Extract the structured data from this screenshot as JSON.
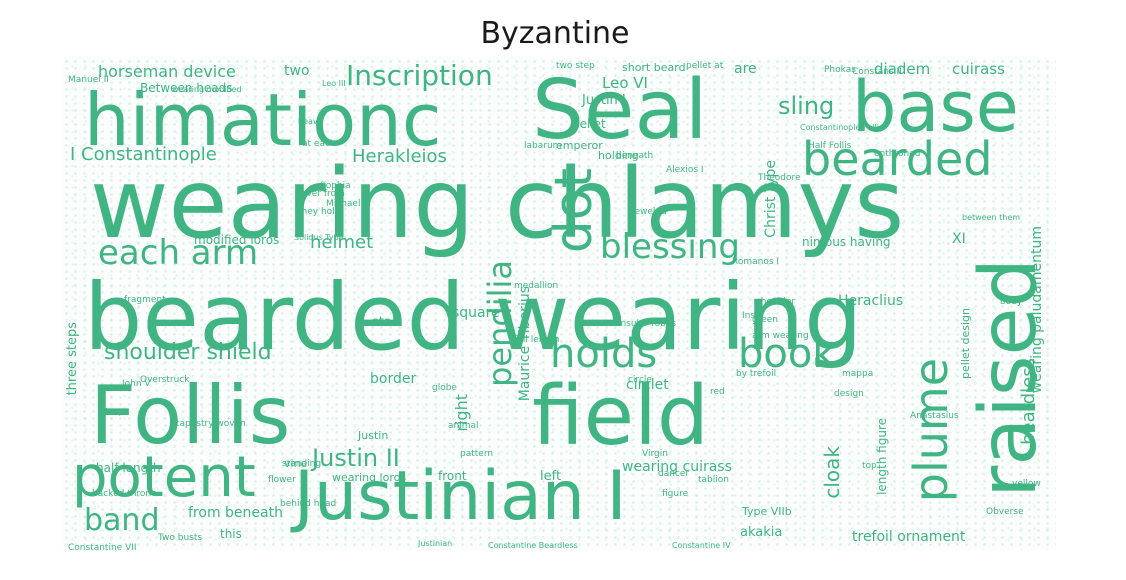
{
  "title": "Byzantine",
  "word_color": "#40b583",
  "words": [
    {
      "text": "wearing chlamys",
      "weight": 1.0
    },
    {
      "text": "bearded wearing",
      "weight": 0.97
    },
    {
      "text": "himationc",
      "weight": 0.82
    },
    {
      "text": "Seal",
      "weight": 0.88
    },
    {
      "text": "base",
      "weight": 0.82
    },
    {
      "text": "Follis",
      "weight": 0.9
    },
    {
      "text": "field",
      "weight": 0.9
    },
    {
      "text": "Justinian I",
      "weight": 0.7
    },
    {
      "text": "raised",
      "weight": 0.82
    },
    {
      "text": "potent",
      "weight": 0.6
    },
    {
      "text": "bearded",
      "weight": 0.5
    },
    {
      "text": "dot",
      "weight": 0.55
    },
    {
      "text": "plume",
      "weight": 0.48
    },
    {
      "text": "holds",
      "weight": 0.46
    },
    {
      "text": "book",
      "weight": 0.46
    },
    {
      "text": "blessing",
      "weight": 0.4
    },
    {
      "text": "each arm",
      "weight": 0.4
    },
    {
      "text": "pendilia",
      "weight": 0.38
    },
    {
      "text": "Inscription",
      "weight": 0.36
    },
    {
      "text": "band",
      "weight": 0.36
    },
    {
      "text": "Justin II",
      "weight": 0.3
    },
    {
      "text": "shoulder shield",
      "weight": 0.3
    },
    {
      "text": "sling",
      "weight": 0.3
    },
    {
      "text": "cloak",
      "weight": 0.26
    },
    {
      "text": "beardless",
      "weight": 0.26
    },
    {
      "text": "I Constantinople",
      "weight": 0.22
    },
    {
      "text": "Herakleios",
      "weight": 0.22
    },
    {
      "text": "horseman device",
      "weight": 0.2
    },
    {
      "text": "helmet",
      "weight": 0.22
    },
    {
      "text": "Maurice Tiberius",
      "weight": 0.2
    },
    {
      "text": "wearing cuirass",
      "weight": 0.18
    },
    {
      "text": "right",
      "weight": 0.2
    },
    {
      "text": "Leo VI",
      "weight": 0.18
    },
    {
      "text": "diadem",
      "weight": 0.17
    },
    {
      "text": "cuirass",
      "weight": 0.17
    },
    {
      "text": "Christ Type",
      "weight": 0.17
    },
    {
      "text": "nimbus having",
      "weight": 0.14
    },
    {
      "text": "wearing paludamentum",
      "weight": 0.14
    },
    {
      "text": "Heraclius",
      "weight": 0.16
    },
    {
      "text": "XI",
      "weight": 0.16
    },
    {
      "text": "trefoil ornament",
      "weight": 0.16
    },
    {
      "text": "from beneath",
      "weight": 0.16
    },
    {
      "text": "akakia",
      "weight": 0.15
    },
    {
      "text": "circlet",
      "weight": 0.15
    },
    {
      "text": "border",
      "weight": 0.15
    },
    {
      "text": "square",
      "weight": 0.15
    },
    {
      "text": "star",
      "weight": 0.15
    },
    {
      "text": "three steps",
      "weight": 0.14
    },
    {
      "text": "Between heads",
      "weight": 0.13
    },
    {
      "text": "modified loros",
      "weight": 0.12
    },
    {
      "text": "short beard",
      "weight": 0.12
    },
    {
      "text": "pellet",
      "weight": 0.12
    },
    {
      "text": "emperor",
      "weight": 0.11
    },
    {
      "text": "holding",
      "weight": 0.11
    },
    {
      "text": "front",
      "weight": 0.12
    },
    {
      "text": "left",
      "weight": 0.13
    },
    {
      "text": "length figure",
      "weight": 0.13
    },
    {
      "text": "pellet design",
      "weight": 0.12
    },
    {
      "text": "half length",
      "weight": 0.11
    },
    {
      "text": "wearing loros",
      "weight": 0.11
    },
    {
      "text": "Type VIIb",
      "weight": 0.11
    },
    {
      "text": "vine",
      "weight": 0.11
    },
    {
      "text": "Justin",
      "weight": 0.11
    },
    {
      "text": "two",
      "weight": 0.13
    },
    {
      "text": "are",
      "weight": 0.13
    },
    {
      "text": "this",
      "weight": 0.11
    },
    {
      "text": "Constantine VII",
      "weight": 0.08
    },
    {
      "text": "Two busts",
      "weight": 0.08
    },
    {
      "text": "Solidus",
      "weight": 0.08
    },
    {
      "text": "Sophia",
      "weight": 0.08
    },
    {
      "text": "Michael",
      "weight": 0.08
    },
    {
      "text": "standing",
      "weight": 0.08
    },
    {
      "text": "Virgin",
      "weight": 0.08
    },
    {
      "text": "Half Follis",
      "weight": 0.08
    },
    {
      "text": "labarum",
      "weight": 0.08
    },
    {
      "text": "Anastasius",
      "weight": 0.08
    },
    {
      "text": "Constans II",
      "weight": 0.08
    },
    {
      "text": "tablion",
      "weight": 0.08
    },
    {
      "text": "Obverse",
      "weight": 0.08
    },
    {
      "text": "yellow",
      "weight": 0.08
    },
    {
      "text": "red",
      "weight": 0.08
    },
    {
      "text": "green",
      "weight": 0.08
    },
    {
      "text": "Romanos I",
      "weight": 0.08
    },
    {
      "text": "Alexios I",
      "weight": 0.08
    },
    {
      "text": "Phokas",
      "weight": 0.08
    },
    {
      "text": "enthroned",
      "weight": 0.08
    },
    {
      "text": "consular robes",
      "weight": 0.08
    },
    {
      "text": "medallion",
      "weight": 0.08
    },
    {
      "text": "cover from",
      "weight": 0.08
    },
    {
      "text": "they hold",
      "weight": 0.08
    },
    {
      "text": "behind head",
      "weight": 0.08
    },
    {
      "text": "backed throne",
      "weight": 0.08
    },
    {
      "text": "tapestry woven",
      "weight": 0.08
    },
    {
      "text": "Overstruck",
      "weight": 0.08
    },
    {
      "text": "at each",
      "weight": 0.08
    },
    {
      "text": "by trefoil",
      "weight": 0.08
    },
    {
      "text": "Inscr",
      "weight": 0.08
    },
    {
      "text": "animal",
      "weight": 0.08
    },
    {
      "text": "dancer",
      "weight": 0.08
    },
    {
      "text": "Theodore",
      "weight": 0.08
    },
    {
      "text": "jeweled",
      "weight": 0.08
    },
    {
      "text": "beneath",
      "weight": 0.08
    },
    {
      "text": "design",
      "weight": 0.08
    },
    {
      "text": "fragment",
      "weight": 0.08
    },
    {
      "text": "pattern",
      "weight": 0.08
    },
    {
      "text": "Justinian",
      "weight": 0.08
    },
    {
      "text": "Constantine Beardless",
      "weight": 0.07
    },
    {
      "text": "Constantine IV",
      "weight": 0.07
    },
    {
      "text": "Constantinople Follis",
      "weight": 0.07
    },
    {
      "text": "Manuel II",
      "weight": 0.07
    },
    {
      "text": "heavy",
      "weight": 0.07
    },
    {
      "text": "John V",
      "weight": 0.07
    },
    {
      "text": "Leo III",
      "weight": 0.07
    },
    {
      "text": "Tracy",
      "weight": 0.07
    },
    {
      "text": "wearing modified",
      "weight": 0.07
    },
    {
      "text": "between them",
      "weight": 0.07
    },
    {
      "text": "shoulder",
      "weight": 0.07
    },
    {
      "text": "body",
      "weight": 0.07
    },
    {
      "text": "two step",
      "weight": 0.07
    },
    {
      "text": "pellet at",
      "weight": 0.07
    },
    {
      "text": "circle",
      "weight": 0.07
    },
    {
      "text": "globe",
      "weight": 0.07
    },
    {
      "text": "flower",
      "weight": 0.07
    },
    {
      "text": "mappa",
      "weight": 0.07
    },
    {
      "text": "top",
      "weight": 0.07
    },
    {
      "text": "arm wearing",
      "weight": 0.07
    },
    {
      "text": "full length",
      "weight": 0.07
    },
    {
      "text": "figure",
      "weight": 0.07
    },
    {
      "text": "Solidus Type",
      "weight": 0.07
    },
    {
      "text": "Justin I",
      "weight": 0.09
    }
  ]
}
